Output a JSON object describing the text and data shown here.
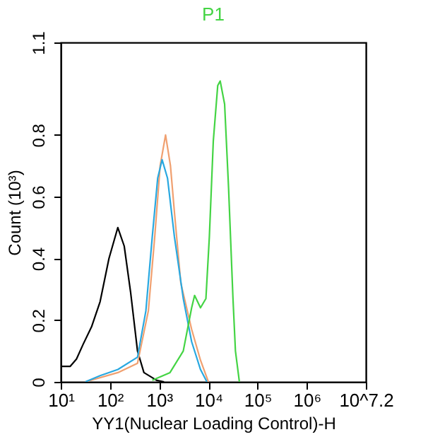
{
  "chart_data": {
    "type": "line",
    "title": "P1",
    "xlabel": "YY1(Nuclear Loading Control)-H",
    "ylabel": "Count (10³)",
    "log": "x",
    "grid": false,
    "xlim": [
      10,
      15848932
    ],
    "ylim": [
      0,
      1.1
    ],
    "xticks": [
      {
        "value": 10,
        "label": "10¹"
      },
      {
        "value": 100,
        "label": "10²"
      },
      {
        "value": 1000,
        "label": "10³"
      },
      {
        "value": 10000,
        "label": "10⁴"
      },
      {
        "value": 100000,
        "label": "10⁵"
      },
      {
        "value": 1000000,
        "label": "10⁶"
      },
      {
        "value": 15848932,
        "label": "10^7.2"
      }
    ],
    "yticks": [
      0,
      0.2,
      0.4,
      0.6,
      0.8,
      1.1
    ],
    "series": [
      {
        "color": "#000000",
        "x": [
          10,
          15.5,
          20.9,
          28.2,
          42.7,
          63.1,
          95.5,
          144.5,
          195,
          263,
          363,
          490,
          891,
          1259
        ],
        "values": [
          0.05,
          0.05,
          0.074,
          0.12,
          0.18,
          0.26,
          0.4,
          0.5,
          0.44,
          0.29,
          0.1,
          0.03,
          0.005,
          0
        ]
      },
      {
        "color": "#f0a070",
        "x": [
          31.6,
          145,
          363,
          603,
          813,
          1047,
          1349,
          1698,
          2042,
          2754,
          4571,
          6918,
          10000
        ],
        "values": [
          0,
          0.03,
          0.06,
          0.23,
          0.47,
          0.7,
          0.8,
          0.7,
          0.55,
          0.32,
          0.17,
          0.07,
          0
        ]
      },
      {
        "color": "#29a8e0",
        "x": [
          31.6,
          63.1,
          145,
          363,
          537,
          724,
          933,
          1148,
          1479,
          2042,
          3090,
          4571,
          6918,
          9333
        ],
        "values": [
          0,
          0.02,
          0.04,
          0.08,
          0.23,
          0.47,
          0.66,
          0.72,
          0.66,
          0.47,
          0.27,
          0.13,
          0.04,
          0
        ]
      },
      {
        "color": "#44d444",
        "x": [
          724,
          1660,
          3090,
          4571,
          5248,
          6918,
          8913,
          10471,
          12589,
          15488,
          17378,
          21380,
          25704,
          31623,
          35481,
          42658
        ],
        "values": [
          0.005,
          0.03,
          0.1,
          0.24,
          0.28,
          0.24,
          0.27,
          0.47,
          0.78,
          0.96,
          0.975,
          0.9,
          0.63,
          0.27,
          0.1,
          0
        ]
      }
    ]
  }
}
